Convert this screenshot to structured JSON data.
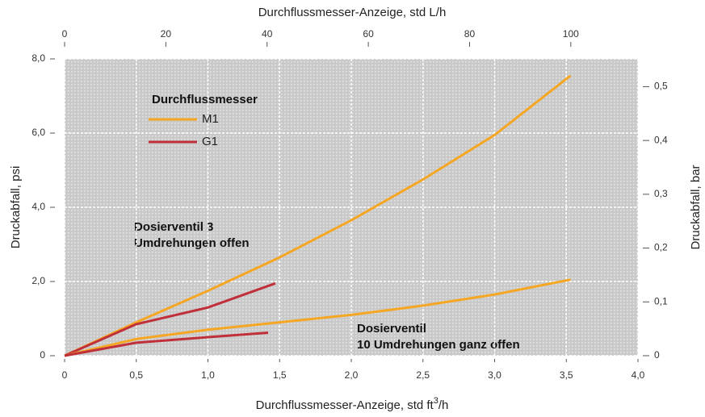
{
  "chart_data": {
    "type": "line",
    "title": "Durchflussmesser-Anzeige, std L/h",
    "xlabel": [
      "Durchflussmesser-Anzeige, std ft",
      "3",
      "/h"
    ],
    "ylabel": "Druckabfall, psi",
    "y2label": "Druckabfall, bar",
    "legend_title": "Durchflussmesser",
    "annotations": [
      "Dosierventil 3",
      "Umdrehungen offen",
      "Dosierventil",
      "10 Umdrehungen ganz offen"
    ],
    "xlim": [
      0,
      4.0
    ],
    "xticks": [
      0,
      {
        "value": 0.5,
        "label": "0,5"
      },
      {
        "value": 1.0,
        "label": "1,0"
      },
      {
        "value": 1.5,
        "label": "1,5"
      },
      {
        "value": 2.0,
        "label": "2,0"
      },
      {
        "value": 2.5,
        "label": "2,5"
      },
      {
        "value": 3.0,
        "label": "3,0"
      },
      {
        "value": 3.5,
        "label": "3,5"
      },
      {
        "value": 4.0,
        "label": "4,0"
      }
    ],
    "x2lim": [
      0,
      113.27
    ],
    "x2ticks": [
      0,
      20,
      40,
      60,
      80,
      100
    ],
    "ylim": [
      0,
      8.0
    ],
    "yticks": [
      0,
      {
        "value": 2.0,
        "label": "2,0"
      },
      {
        "value": 4.0,
        "label": "4,0"
      },
      {
        "value": 6.0,
        "label": "6,0"
      },
      {
        "value": 8.0,
        "label": "8,0"
      }
    ],
    "y2lim": [
      0,
      0.5516
    ],
    "y2ticks": [
      0,
      {
        "value": 0.1,
        "label": "0,1"
      },
      {
        "value": 0.2,
        "label": "0,2"
      },
      {
        "value": 0.3,
        "label": "0,3"
      },
      {
        "value": 0.4,
        "label": "0,4"
      },
      {
        "value": 0.5,
        "label": "0,5"
      }
    ],
    "grid": true,
    "series": [
      {
        "name": "M1",
        "color": "#f5a623",
        "x": [
          0,
          0.5,
          1.0,
          1.5,
          2.0,
          2.5,
          3.0,
          3.53
        ],
        "values": [
          0,
          0.9,
          1.75,
          2.65,
          3.65,
          4.75,
          5.95,
          7.55
        ]
      },
      {
        "name": "G1",
        "color": "#c0303a",
        "x": [
          0,
          0.5,
          1.0,
          1.47
        ],
        "values": [
          0,
          0.85,
          1.3,
          1.95
        ]
      },
      {
        "name": "M1",
        "color": "#f5a623",
        "x": [
          0,
          0.5,
          1.0,
          1.5,
          2.0,
          2.5,
          3.0,
          3.53
        ],
        "values": [
          0,
          0.45,
          0.7,
          0.9,
          1.1,
          1.35,
          1.65,
          2.05
        ]
      },
      {
        "name": "G1",
        "color": "#c0303a",
        "x": [
          0,
          0.5,
          1.0,
          1.42
        ],
        "values": [
          0,
          0.35,
          0.5,
          0.62
        ]
      }
    ]
  }
}
